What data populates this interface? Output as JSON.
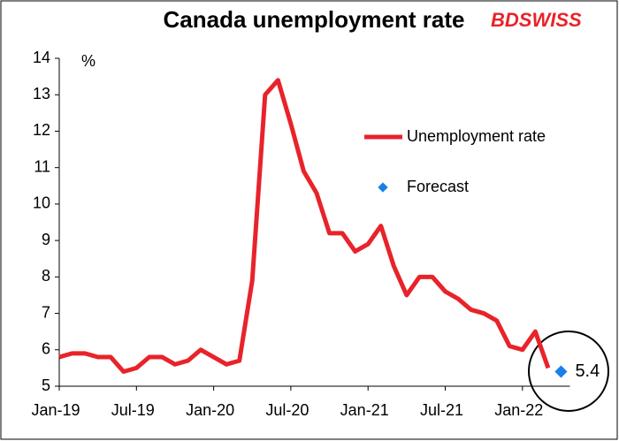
{
  "chart_data": {
    "type": "line",
    "title": "Canada unemployment rate",
    "ylabel": "%",
    "logo": "BDSWISS",
    "categories": [
      "Jan-19",
      null,
      null,
      null,
      null,
      null,
      "Jul-19",
      null,
      null,
      null,
      null,
      null,
      "Jan-20",
      null,
      null,
      null,
      null,
      null,
      "Jul-20",
      null,
      null,
      null,
      null,
      null,
      "Jan-21",
      null,
      null,
      null,
      null,
      null,
      "Jul-21",
      null,
      null,
      null,
      null,
      null,
      "Jan-22",
      null,
      null,
      null
    ],
    "series": [
      {
        "name": "Unemployment rate",
        "color": "#e8232a",
        "values": [
          5.8,
          5.9,
          5.9,
          5.8,
          5.8,
          5.4,
          5.5,
          5.8,
          5.8,
          5.6,
          5.7,
          6.0,
          5.8,
          5.6,
          5.7,
          7.9,
          13.0,
          13.4,
          12.2,
          10.9,
          10.3,
          9.2,
          9.2,
          8.7,
          8.9,
          9.4,
          8.3,
          7.5,
          8.0,
          8.0,
          7.6,
          7.4,
          7.1,
          7.0,
          6.8,
          6.1,
          6.0,
          6.5,
          5.5,
          null
        ]
      },
      {
        "name": "Forecast",
        "color": "#1a7fe8",
        "values": [
          null,
          null,
          null,
          null,
          null,
          null,
          null,
          null,
          null,
          null,
          null,
          null,
          null,
          null,
          null,
          null,
          null,
          null,
          null,
          null,
          null,
          null,
          null,
          null,
          null,
          null,
          null,
          null,
          null,
          null,
          null,
          null,
          null,
          null,
          null,
          null,
          null,
          null,
          null,
          5.4
        ],
        "value_labels": [
          null,
          null,
          null,
          null,
          null,
          null,
          null,
          null,
          null,
          null,
          null,
          null,
          null,
          null,
          null,
          null,
          null,
          null,
          null,
          null,
          null,
          null,
          null,
          null,
          null,
          null,
          null,
          null,
          null,
          null,
          null,
          null,
          null,
          null,
          null,
          null,
          null,
          null,
          null,
          "5.4"
        ]
      }
    ],
    "ylim": [
      5,
      14
    ],
    "yticks": [
      5,
      6,
      7,
      8,
      9,
      10,
      11,
      12,
      13,
      14
    ],
    "grid": false
  }
}
